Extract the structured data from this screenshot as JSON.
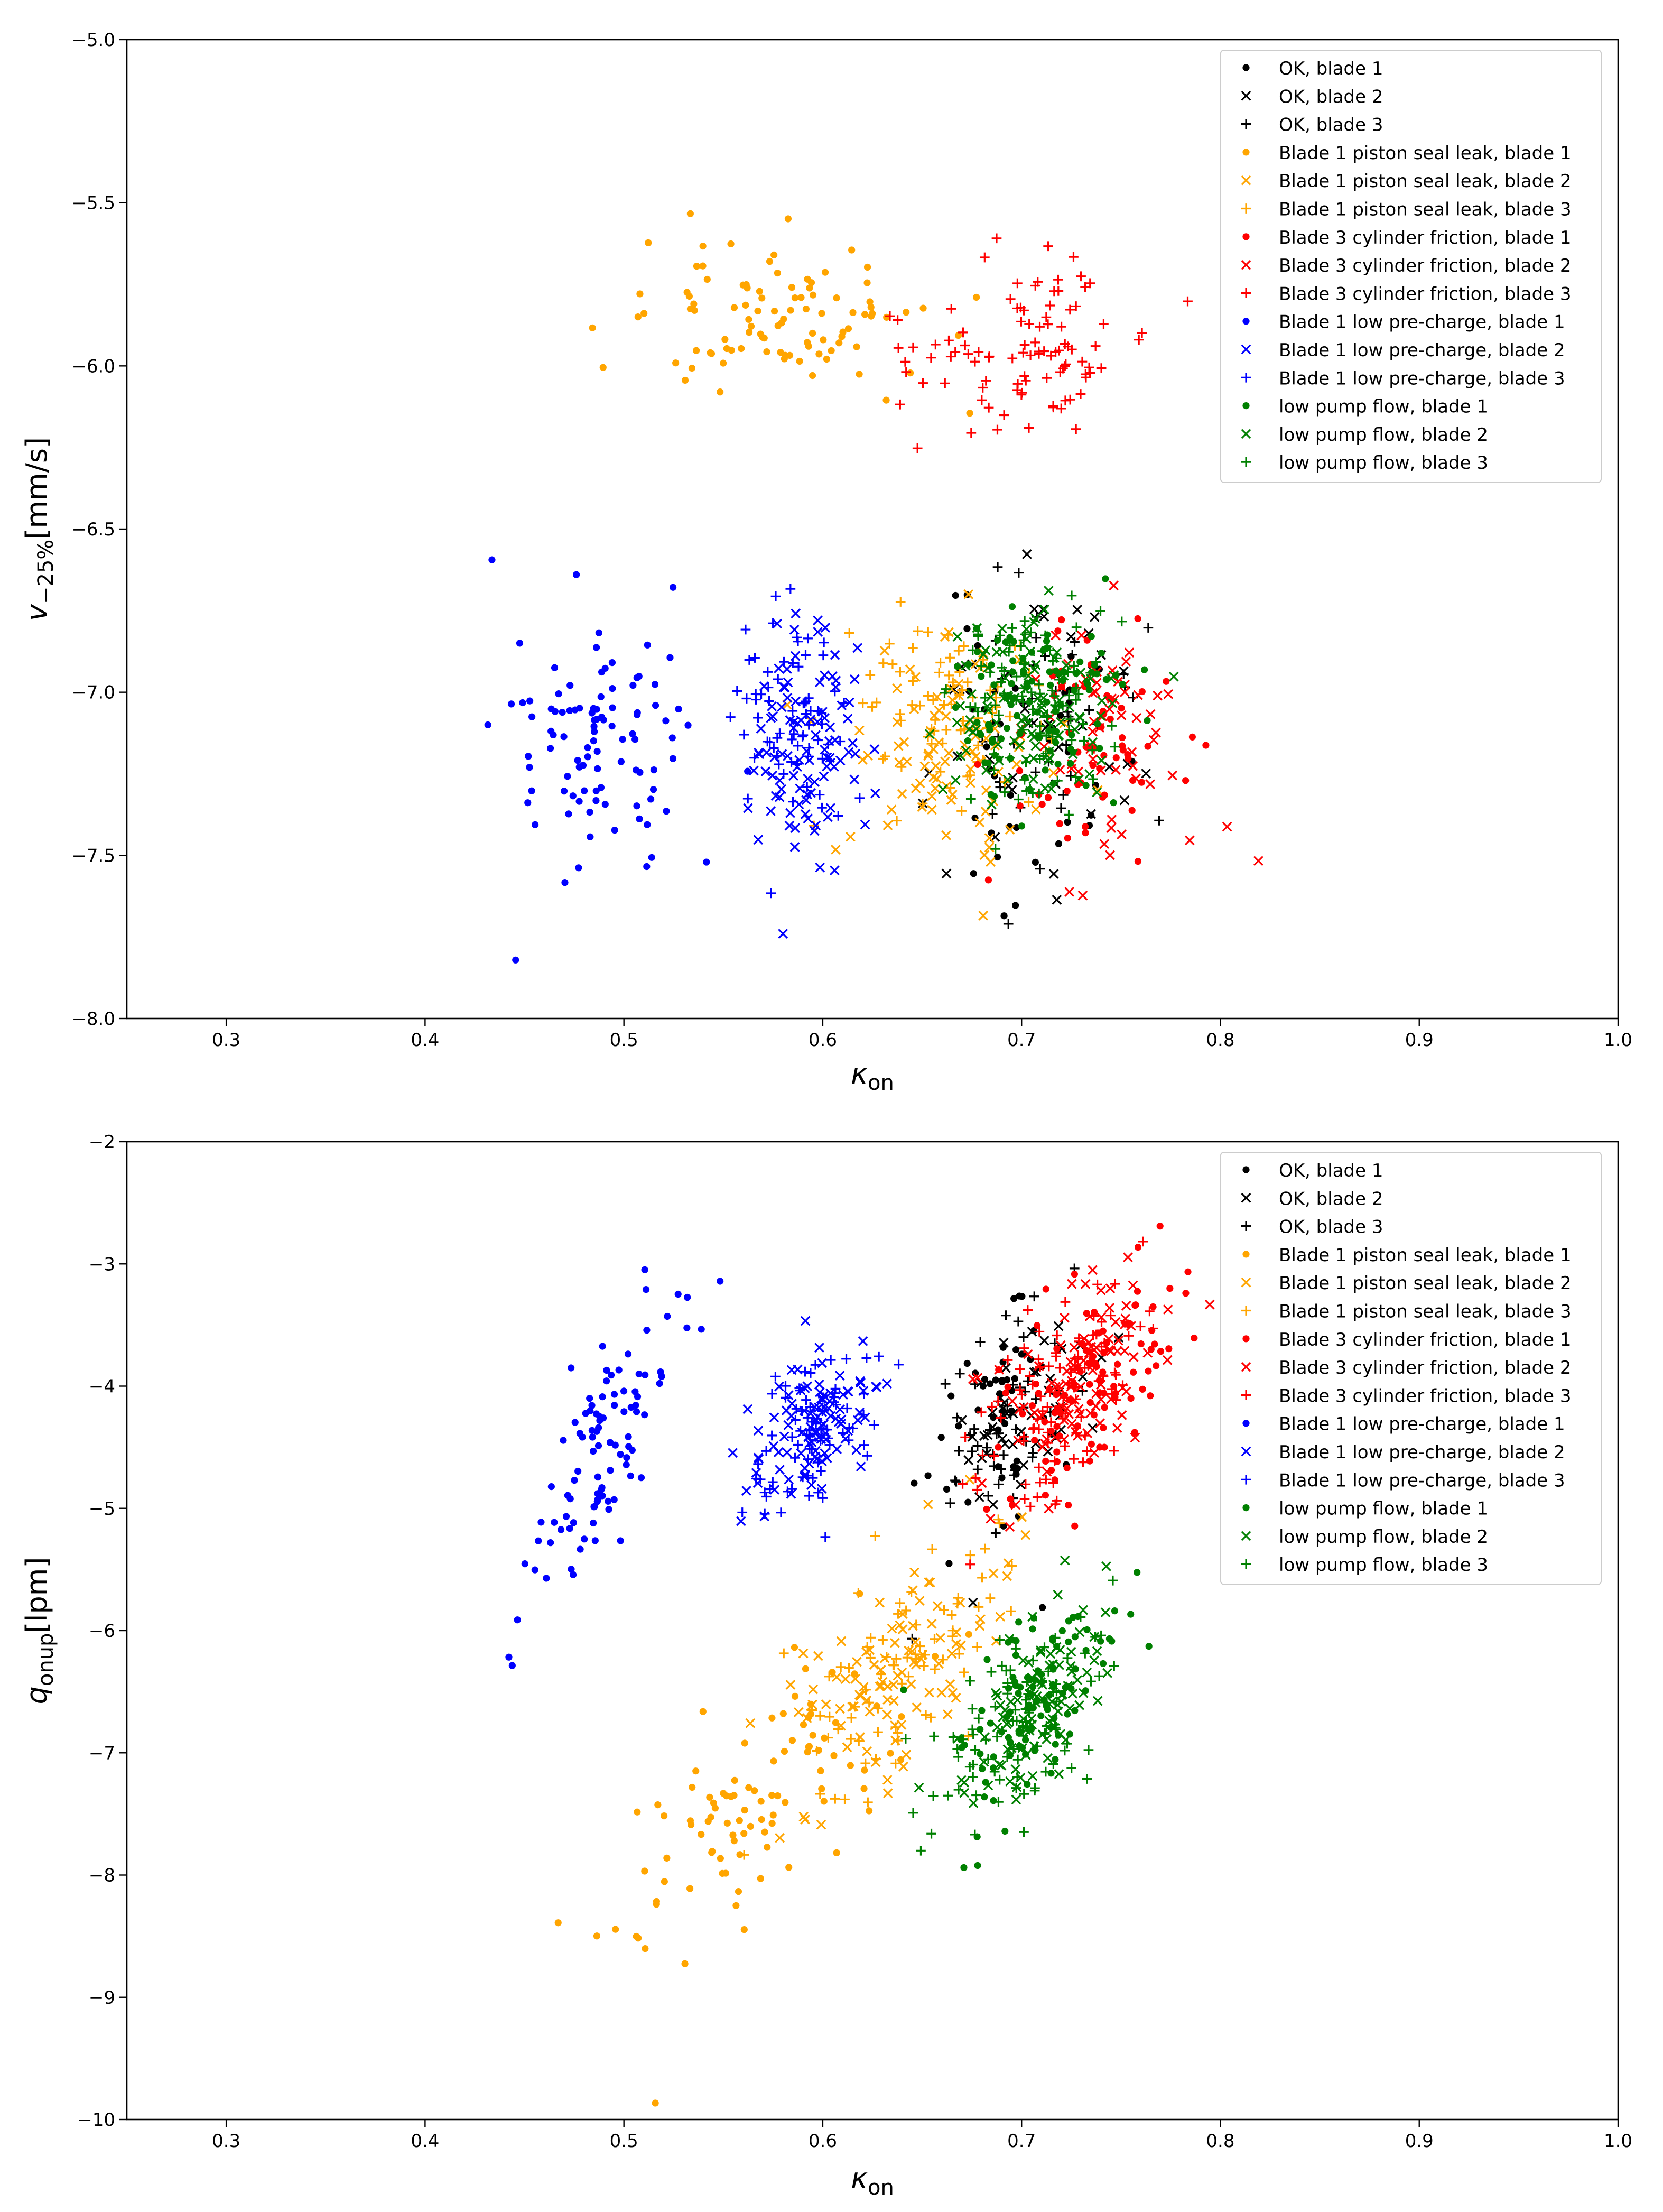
{
  "colors": {
    "ok": "#000000",
    "piston": "#FFA500",
    "cylinder": "#FF0000",
    "precharge": "#0000FF",
    "pump": "#008000"
  },
  "chart_data": [
    {
      "type": "scatter",
      "title": "",
      "xlabel_main": "κ",
      "xlabel_sub": "on",
      "ylabel_main": "v",
      "ylabel_sub": "−25%",
      "ylabel_unit": "[mm/s]",
      "xlim": [
        0.25,
        1.0
      ],
      "ylim": [
        -8.0,
        -5.0
      ],
      "xticks": [
        0.3,
        0.4,
        0.5,
        0.6,
        0.7,
        0.8,
        0.9,
        1.0
      ],
      "xtick_labels": [
        "0.3",
        "0.4",
        "0.5",
        "0.6",
        "0.7",
        "0.8",
        "0.9",
        "1.0"
      ],
      "yticks": [
        -8.0,
        -7.5,
        -7.0,
        -6.5,
        -6.0,
        -5.5,
        -5.0
      ],
      "ytick_labels": [
        "−8.0",
        "−7.5",
        "−7.0",
        "−6.5",
        "−6.0",
        "−5.5",
        "−5.0"
      ],
      "legend_position": "top-right",
      "series": [
        {
          "name": "OK, blade 1",
          "color": "ok",
          "marker": "dot",
          "cx": 0.705,
          "cy": -7.2,
          "sx": 0.025,
          "sy": 0.22,
          "n": 40,
          "seed": 11
        },
        {
          "name": "OK, blade 2",
          "color": "ok",
          "marker": "x",
          "cx": 0.705,
          "cy": -7.1,
          "sx": 0.025,
          "sy": 0.22,
          "n": 40,
          "seed": 12
        },
        {
          "name": "OK, blade 3",
          "color": "ok",
          "marker": "plus",
          "cx": 0.705,
          "cy": -7.1,
          "sx": 0.025,
          "sy": 0.22,
          "n": 40,
          "seed": 13
        },
        {
          "name": "Blade 1 piston seal leak, blade 1",
          "color": "piston",
          "marker": "dot",
          "cx": 0.575,
          "cy": -5.85,
          "sx": 0.04,
          "sy": 0.12,
          "n": 100,
          "seed": 21
        },
        {
          "name": "Blade 1 piston seal leak, blade 2",
          "color": "piston",
          "marker": "x",
          "cx": 0.66,
          "cy": -7.15,
          "sx": 0.025,
          "sy": 0.16,
          "n": 90,
          "seed": 22
        },
        {
          "name": "Blade 1 piston seal leak, blade 3",
          "color": "piston",
          "marker": "plus",
          "cx": 0.66,
          "cy": -7.05,
          "sx": 0.025,
          "sy": 0.16,
          "n": 80,
          "seed": 23
        },
        {
          "name": "Blade 3 cylinder friction, blade 1",
          "color": "cylinder",
          "marker": "dot",
          "cx": 0.735,
          "cy": -7.15,
          "sx": 0.02,
          "sy": 0.18,
          "n": 60,
          "seed": 31
        },
        {
          "name": "Blade 3 cylinder friction, blade 2",
          "color": "cylinder",
          "marker": "x",
          "cx": 0.745,
          "cy": -7.1,
          "sx": 0.02,
          "sy": 0.18,
          "n": 60,
          "seed": 32
        },
        {
          "name": "Blade 3 cylinder friction, blade 3",
          "color": "cylinder",
          "marker": "plus",
          "cx": 0.7,
          "cy": -5.95,
          "sx": 0.03,
          "sy": 0.13,
          "n": 100,
          "seed": 33
        },
        {
          "name": "Blade 1 low pre-charge, blade 1",
          "color": "precharge",
          "marker": "dot",
          "cx": 0.49,
          "cy": -7.15,
          "sx": 0.022,
          "sy": 0.2,
          "n": 100,
          "seed": 41
        },
        {
          "name": "Blade 1 low pre-charge, blade 2",
          "color": "precharge",
          "marker": "x",
          "cx": 0.59,
          "cy": -7.15,
          "sx": 0.015,
          "sy": 0.18,
          "n": 100,
          "seed": 42
        },
        {
          "name": "Blade 1 low pre-charge, blade 3",
          "color": "precharge",
          "marker": "plus",
          "cx": 0.585,
          "cy": -7.1,
          "sx": 0.015,
          "sy": 0.18,
          "n": 70,
          "seed": 43
        },
        {
          "name": "low pump flow, blade 1",
          "color": "pump",
          "marker": "dot",
          "cx": 0.705,
          "cy": -7.05,
          "sx": 0.02,
          "sy": 0.15,
          "n": 100,
          "seed": 51
        },
        {
          "name": "low pump flow, blade 2",
          "color": "pump",
          "marker": "x",
          "cx": 0.71,
          "cy": -7.05,
          "sx": 0.02,
          "sy": 0.15,
          "n": 100,
          "seed": 52
        },
        {
          "name": "low pump flow, blade 3",
          "color": "pump",
          "marker": "plus",
          "cx": 0.705,
          "cy": -7.05,
          "sx": 0.02,
          "sy": 0.15,
          "n": 100,
          "seed": 53
        }
      ]
    },
    {
      "type": "scatter",
      "title": "",
      "xlabel_main": "κ",
      "xlabel_sub": "on",
      "ylabel_main": "q",
      "ylabel_sub": "onup",
      "ylabel_unit": "[lpm]",
      "xlim": [
        0.25,
        1.0
      ],
      "ylim": [
        -10,
        -2
      ],
      "xticks": [
        0.3,
        0.4,
        0.5,
        0.6,
        0.7,
        0.8,
        0.9,
        1.0
      ],
      "xtick_labels": [
        "0.3",
        "0.4",
        "0.5",
        "0.6",
        "0.7",
        "0.8",
        "0.9",
        "1.0"
      ],
      "yticks": [
        -10,
        -9,
        -8,
        -7,
        -6,
        -5,
        -4,
        -3,
        -2
      ],
      "ytick_labels": [
        "−10",
        "−9",
        "−8",
        "−7",
        "−6",
        "−5",
        "−4",
        "−3",
        "−2"
      ],
      "legend_position": "top-right",
      "series": [
        {
          "name": "OK, blade 1",
          "color": "ok",
          "marker": "dot",
          "cx": 0.69,
          "cy": -4.2,
          "sx": 0.02,
          "sy": 0.45,
          "slope": 13,
          "n": 50,
          "seed": 111
        },
        {
          "name": "OK, blade 2",
          "color": "ok",
          "marker": "x",
          "cx": 0.7,
          "cy": -4.1,
          "sx": 0.02,
          "sy": 0.45,
          "slope": 13,
          "n": 50,
          "seed": 112
        },
        {
          "name": "OK, blade 3",
          "color": "ok",
          "marker": "plus",
          "cx": 0.69,
          "cy": -4.3,
          "sx": 0.02,
          "sy": 0.45,
          "slope": 13,
          "n": 50,
          "seed": 113
        },
        {
          "name": "Blade 1 piston seal leak, blade 1",
          "color": "piston",
          "marker": "dot",
          "cx": 0.575,
          "cy": -7.2,
          "sx": 0.04,
          "sy": 0.5,
          "slope": 13,
          "n": 100,
          "seed": 121
        },
        {
          "name": "Blade 1 piston seal leak, blade 2",
          "color": "piston",
          "marker": "x",
          "cx": 0.64,
          "cy": -6.3,
          "sx": 0.03,
          "sy": 0.4,
          "slope": 13,
          "n": 100,
          "seed": 122
        },
        {
          "name": "Blade 1 piston seal leak, blade 3",
          "color": "piston",
          "marker": "plus",
          "cx": 0.64,
          "cy": -6.3,
          "sx": 0.03,
          "sy": 0.4,
          "slope": 13,
          "n": 80,
          "seed": 123
        },
        {
          "name": "Blade 3 cylinder friction, blade 1",
          "color": "cylinder",
          "marker": "dot",
          "cx": 0.73,
          "cy": -4.0,
          "sx": 0.022,
          "sy": 0.4,
          "slope": 13,
          "n": 100,
          "seed": 131
        },
        {
          "name": "Blade 3 cylinder friction, blade 2",
          "color": "cylinder",
          "marker": "x",
          "cx": 0.73,
          "cy": -3.9,
          "sx": 0.022,
          "sy": 0.4,
          "slope": 13,
          "n": 100,
          "seed": 132
        },
        {
          "name": "Blade 3 cylinder friction, blade 3",
          "color": "cylinder",
          "marker": "plus",
          "cx": 0.72,
          "cy": -4.1,
          "sx": 0.022,
          "sy": 0.4,
          "slope": 13,
          "n": 100,
          "seed": 133
        },
        {
          "name": "Blade 1 low pre-charge, blade 1",
          "color": "precharge",
          "marker": "dot",
          "cx": 0.485,
          "cy": -4.6,
          "sx": 0.022,
          "sy": 0.4,
          "slope": 30,
          "n": 100,
          "seed": 141
        },
        {
          "name": "Blade 1 low pre-charge, blade 2",
          "color": "precharge",
          "marker": "x",
          "cx": 0.595,
          "cy": -4.3,
          "sx": 0.015,
          "sy": 0.3,
          "slope": 8,
          "n": 100,
          "seed": 142
        },
        {
          "name": "Blade 1 low pre-charge, blade 3",
          "color": "precharge",
          "marker": "plus",
          "cx": 0.6,
          "cy": -4.3,
          "sx": 0.015,
          "sy": 0.3,
          "slope": 8,
          "n": 80,
          "seed": 143
        },
        {
          "name": "low pump flow, blade 1",
          "color": "pump",
          "marker": "dot",
          "cx": 0.705,
          "cy": -6.6,
          "sx": 0.02,
          "sy": 0.35,
          "slope": 13,
          "n": 100,
          "seed": 151
        },
        {
          "name": "low pump flow, blade 2",
          "color": "pump",
          "marker": "x",
          "cx": 0.71,
          "cy": -6.6,
          "sx": 0.02,
          "sy": 0.35,
          "slope": 13,
          "n": 100,
          "seed": 152
        },
        {
          "name": "low pump flow, blade 3",
          "color": "pump",
          "marker": "plus",
          "cx": 0.7,
          "cy": -6.7,
          "sx": 0.02,
          "sy": 0.35,
          "slope": 13,
          "n": 100,
          "seed": 153
        }
      ]
    }
  ]
}
